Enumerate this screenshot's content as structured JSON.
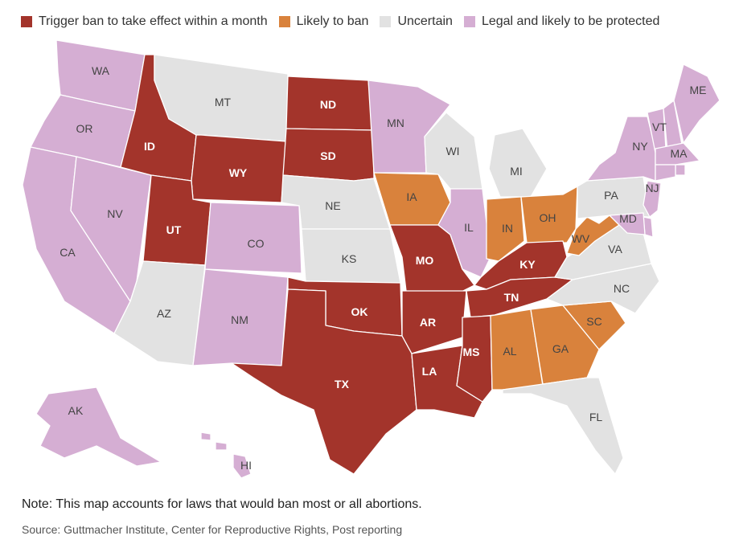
{
  "legend": [
    {
      "key": "trigger",
      "label": "Trigger ban to take effect within a month",
      "color": "#a3342b"
    },
    {
      "key": "likely",
      "label": "Likely to ban",
      "color": "#d9823c"
    },
    {
      "key": "uncertain",
      "label": "Uncertain",
      "color": "#e2e2e2"
    },
    {
      "key": "legal",
      "label": "Legal and likely to be protected",
      "color": "#d5aed3"
    }
  ],
  "states": [
    {
      "code": "WA",
      "status": "legal"
    },
    {
      "code": "OR",
      "status": "legal"
    },
    {
      "code": "CA",
      "status": "legal"
    },
    {
      "code": "NV",
      "status": "legal"
    },
    {
      "code": "ID",
      "status": "trigger"
    },
    {
      "code": "MT",
      "status": "uncertain"
    },
    {
      "code": "WY",
      "status": "trigger"
    },
    {
      "code": "UT",
      "status": "trigger"
    },
    {
      "code": "AZ",
      "status": "uncertain"
    },
    {
      "code": "CO",
      "status": "legal"
    },
    {
      "code": "NM",
      "status": "legal"
    },
    {
      "code": "ND",
      "status": "trigger"
    },
    {
      "code": "SD",
      "status": "trigger"
    },
    {
      "code": "NE",
      "status": "uncertain"
    },
    {
      "code": "KS",
      "status": "uncertain"
    },
    {
      "code": "OK",
      "status": "trigger"
    },
    {
      "code": "TX",
      "status": "trigger"
    },
    {
      "code": "MN",
      "status": "legal"
    },
    {
      "code": "IA",
      "status": "likely"
    },
    {
      "code": "MO",
      "status": "trigger"
    },
    {
      "code": "AR",
      "status": "trigger"
    },
    {
      "code": "LA",
      "status": "trigger"
    },
    {
      "code": "WI",
      "status": "uncertain"
    },
    {
      "code": "IL",
      "status": "legal"
    },
    {
      "code": "MI",
      "status": "uncertain"
    },
    {
      "code": "IN",
      "status": "likely"
    },
    {
      "code": "OH",
      "status": "likely"
    },
    {
      "code": "KY",
      "status": "trigger"
    },
    {
      "code": "TN",
      "status": "trigger"
    },
    {
      "code": "MS",
      "status": "trigger"
    },
    {
      "code": "AL",
      "status": "likely"
    },
    {
      "code": "GA",
      "status": "likely"
    },
    {
      "code": "FL",
      "status": "uncertain"
    },
    {
      "code": "SC",
      "status": "likely"
    },
    {
      "code": "NC",
      "status": "uncertain"
    },
    {
      "code": "VA",
      "status": "uncertain"
    },
    {
      "code": "WV",
      "status": "likely"
    },
    {
      "code": "PA",
      "status": "uncertain"
    },
    {
      "code": "NY",
      "status": "legal"
    },
    {
      "code": "VT",
      "status": "legal"
    },
    {
      "code": "NH",
      "status": "legal"
    },
    {
      "code": "ME",
      "status": "legal"
    },
    {
      "code": "MA",
      "status": "legal"
    },
    {
      "code": "RI",
      "status": "legal"
    },
    {
      "code": "CT",
      "status": "legal"
    },
    {
      "code": "NJ",
      "status": "legal"
    },
    {
      "code": "DE",
      "status": "legal"
    },
    {
      "code": "MD",
      "status": "legal"
    },
    {
      "code": "AK",
      "status": "legal"
    },
    {
      "code": "HI",
      "status": "legal"
    }
  ],
  "note": "Note: This map accounts for laws that would ban most or all abortions.",
  "source": "Source: Guttmacher Institute, Center for Reproductive Rights, Post reporting"
}
